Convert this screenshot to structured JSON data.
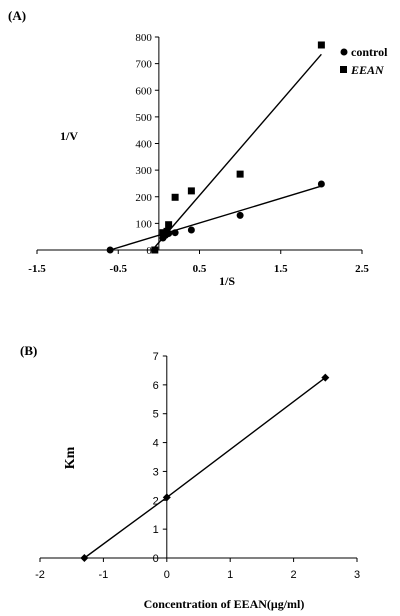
{
  "chart_data": [
    {
      "panel_label": "(A)",
      "type": "scatter",
      "xlabel": "1/S",
      "ylabel": "1/V",
      "xlim": [
        -1.5,
        2.5
      ],
      "ylim": [
        0,
        800
      ],
      "x_ticks": [
        "-1.5",
        "-0.5",
        "0.5",
        "1.5",
        "2.5"
      ],
      "y_ticks": [
        "0",
        "100",
        "200",
        "300",
        "400",
        "500",
        "600",
        "700",
        "800"
      ],
      "legend_position": "top-right",
      "series": [
        {
          "name": "control",
          "marker": "circle",
          "x": [
            -0.6,
            0.05,
            0.08,
            0.1,
            0.12,
            0.2,
            0.4,
            1.0,
            2.0
          ],
          "y": [
            0,
            45,
            55,
            60,
            62,
            65,
            75,
            130,
            248
          ],
          "fit_line": {
            "x": [
              -0.6,
              2.0
            ],
            "y": [
              0,
              240
            ]
          }
        },
        {
          "name": "EEAN",
          "marker": "square",
          "x": [
            -0.05,
            0.05,
            0.1,
            0.12,
            0.2,
            0.4,
            1.0,
            2.0
          ],
          "y": [
            0,
            65,
            70,
            95,
            198,
            222,
            285,
            770
          ],
          "fit_line": {
            "x": [
              -0.08,
              2.0
            ],
            "y": [
              0,
              735
            ]
          }
        }
      ]
    },
    {
      "panel_label": "(B)",
      "type": "line",
      "xlabel": "Concentration of EEAN(μg/ml)",
      "ylabel": "Km",
      "xlim": [
        -2,
        3
      ],
      "ylim": [
        0,
        7
      ],
      "x_ticks": [
        "-2",
        "-1",
        "0",
        "1",
        "2",
        "3"
      ],
      "y_ticks": [
        "0",
        "1",
        "2",
        "3",
        "4",
        "5",
        "6",
        "7"
      ],
      "series": [
        {
          "marker": "diamond",
          "x": [
            -1.3,
            0,
            2.5
          ],
          "y": [
            0,
            2.1,
            6.25
          ]
        }
      ]
    }
  ]
}
